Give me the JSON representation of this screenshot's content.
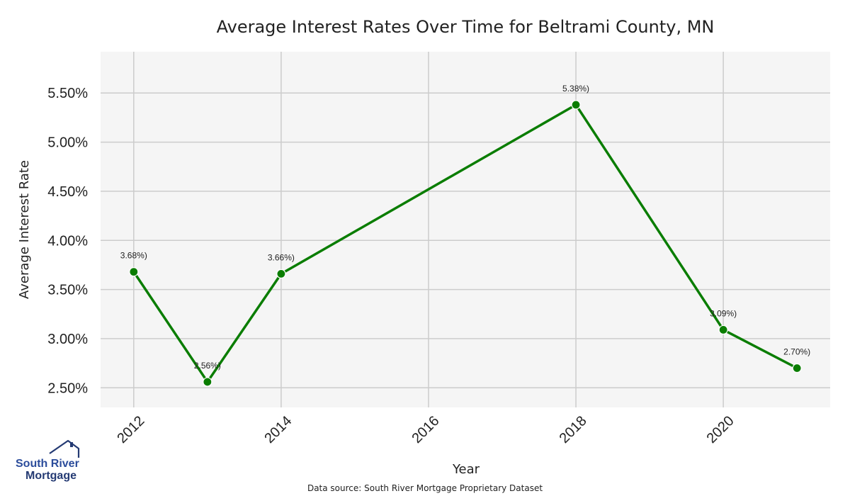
{
  "colors": {
    "plot_background": "#f5f5f5",
    "grid": "#cccccc",
    "series": "#0a7d00",
    "logo_dark": "#243a73",
    "logo_accent": "#2b4c9b"
  },
  "logo": {
    "line1": "South River",
    "line2": "Mortgage",
    "icon": "house-roof-icon"
  },
  "source_note": "Data source: South River Mortgage Proprietary Dataset",
  "chart_data": {
    "type": "line",
    "title": "Average Interest Rates Over Time for Beltrami County, MN",
    "xlabel": "Year",
    "ylabel": "Average Interest Rate",
    "x_ticks": [
      "2012",
      "2014",
      "2016",
      "2018",
      "2020"
    ],
    "y_ticks": [
      "2.50%",
      "3.00%",
      "3.50%",
      "4.00%",
      "4.50%",
      "5.00%",
      "5.50%"
    ],
    "xlim": [
      2011.55,
      2021.45
    ],
    "ylim": [
      2.3,
      5.92
    ],
    "grid": true,
    "series": [
      {
        "x": [
          2012,
          2013,
          2014,
          2018,
          2020,
          2021
        ],
        "y": [
          3.68,
          2.56,
          3.66,
          5.38,
          3.09,
          2.7
        ],
        "labels": [
          "3.68%)",
          "2.56%)",
          "3.66%)",
          "5.38%)",
          "3.09%)",
          "2.70%)"
        ]
      }
    ]
  }
}
